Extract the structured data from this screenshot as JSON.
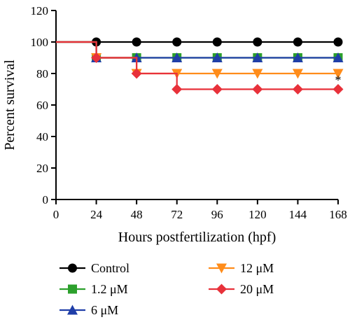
{
  "chart_data": {
    "type": "line",
    "step": true,
    "xlabel": "Hours postfertilization (hpf)",
    "ylabel": "Percent survival",
    "xlim": [
      0,
      168
    ],
    "ylim": [
      0,
      120
    ],
    "xticks": [
      "0",
      "24",
      "48",
      "72",
      "96",
      "120",
      "144",
      "168"
    ],
    "yticks": [
      "0",
      "20",
      "40",
      "60",
      "80",
      "100",
      "120"
    ],
    "grid": false,
    "legend_position": "bottom",
    "series": [
      {
        "name": "Control",
        "color": "#000000",
        "marker": "circle",
        "x": [
          0,
          24,
          48,
          72,
          96,
          120,
          144,
          168
        ],
        "y": [
          100,
          100,
          100,
          100,
          100,
          100,
          100,
          100
        ]
      },
      {
        "name": "1.2 μM",
        "color": "#2ca02c",
        "marker": "square",
        "x": [
          0,
          24,
          48,
          72,
          96,
          120,
          144,
          168
        ],
        "y": [
          100,
          90,
          90,
          90,
          90,
          90,
          90,
          90
        ]
      },
      {
        "name": "6 μM",
        "color": "#1f3ea8",
        "marker": "triangle-up",
        "x": [
          0,
          24,
          48,
          72,
          96,
          120,
          144,
          168
        ],
        "y": [
          100,
          90,
          90,
          90,
          90,
          90,
          90,
          90
        ]
      },
      {
        "name": "12 μM",
        "color": "#ff8c1a",
        "marker": "triangle-down",
        "x": [
          0,
          24,
          48,
          72,
          96,
          120,
          144,
          168
        ],
        "y": [
          100,
          90,
          80,
          80,
          80,
          80,
          80,
          80
        ]
      },
      {
        "name": "20 μM",
        "color": "#e8313a",
        "marker": "diamond",
        "x": [
          0,
          24,
          48,
          72,
          96,
          120,
          144,
          168
        ],
        "y": [
          100,
          90,
          80,
          70,
          70,
          70,
          70,
          70
        ]
      }
    ],
    "annotations": [
      {
        "text": "*",
        "x": 168,
        "y": 75
      }
    ]
  }
}
